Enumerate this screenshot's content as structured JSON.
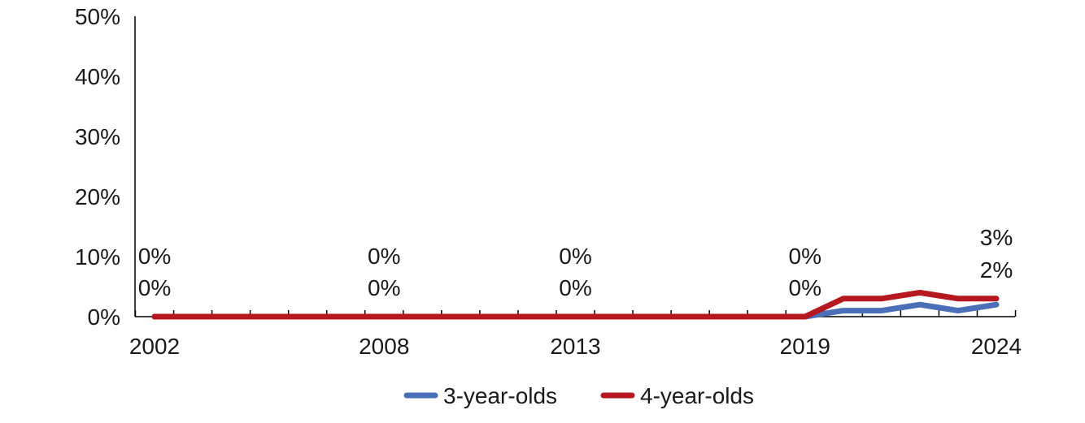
{
  "chart_data": {
    "type": "line",
    "x": [
      2002,
      2003,
      2004,
      2005,
      2006,
      2007,
      2008,
      2009,
      2010,
      2011,
      2012,
      2013,
      2014,
      2015,
      2016,
      2017,
      2018,
      2019,
      2020,
      2021,
      2022,
      2023,
      2024
    ],
    "x_tick_labels": [
      "2002",
      "2008",
      "2013",
      "2019",
      "2024"
    ],
    "ylim": [
      0,
      50
    ],
    "y_ticks": [
      0,
      10,
      20,
      30,
      40,
      50
    ],
    "y_tick_labels": [
      "0%",
      "10%",
      "20%",
      "30%",
      "40%",
      "50%"
    ],
    "legend_position": "bottom",
    "series": [
      {
        "name": "3-year-olds",
        "color": "#4a6fb8",
        "values": [
          0,
          0,
          0,
          0,
          0,
          0,
          0,
          0,
          0,
          0,
          0,
          0,
          0,
          0,
          0,
          0,
          0,
          0,
          1,
          1,
          2,
          1,
          2
        ]
      },
      {
        "name": "4-year-olds",
        "color": "#b5191f",
        "values": [
          0,
          0,
          0,
          0,
          0,
          0,
          0,
          0,
          0,
          0,
          0,
          0,
          0,
          0,
          0,
          0,
          0,
          0,
          3,
          3,
          4,
          3,
          3
        ]
      }
    ],
    "data_labels": [
      {
        "year": 2002,
        "upper": "0%",
        "lower": "0%"
      },
      {
        "year": 2008,
        "upper": "0%",
        "lower": "0%"
      },
      {
        "year": 2013,
        "upper": "0%",
        "lower": "0%"
      },
      {
        "year": 2019,
        "upper": "0%",
        "lower": "0%"
      },
      {
        "year": 2024,
        "upper": "3%",
        "lower": "2%"
      }
    ]
  }
}
